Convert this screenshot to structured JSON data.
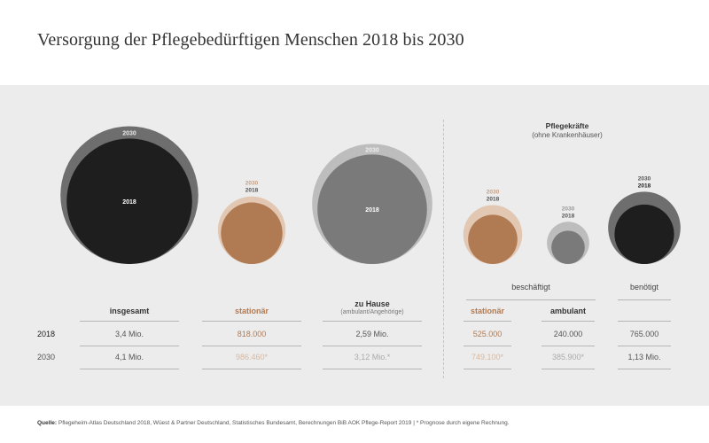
{
  "title": "Versorgung der Pflegebedürftigen Menschen 2018 bis 2030",
  "pflegekraefte": {
    "title": "Pflegekräfte",
    "subtitle": "(ohne Krankenhäuser)"
  },
  "groups": {
    "beschaeftigt": "beschäftigt",
    "benoetigt": "benötigt"
  },
  "circle_labels": {
    "y2018": "2018",
    "y2030": "2030"
  },
  "colors": {
    "insgesamt_2018": "#1e1e1e",
    "insgesamt_2030": "#6e6e6e",
    "stationaer_2018": "#b07a53",
    "stationaer_2030": "#e2c7b3",
    "zuhause_2018": "#7a7a7a",
    "zuhause_2030": "#bdbdbd",
    "ambulant_2018": "#7a7a7a",
    "ambulant_2030": "#bdbdbd",
    "benoetigt_2018": "#1e1e1e",
    "benoetigt_2030": "#6e6e6e",
    "accent": "#b07a53"
  },
  "chart_data": {
    "type": "table",
    "columns": [
      {
        "key": "insgesamt",
        "header": "insgesamt",
        "subheader": "",
        "accent": false
      },
      {
        "key": "stationaer",
        "header": "stationär",
        "subheader": "",
        "accent": true
      },
      {
        "key": "zuhause",
        "header": "zu Hause",
        "subheader": "(ambulant/Angehörige)",
        "accent": false
      },
      {
        "key": "pk_stationaer",
        "header": "stationär",
        "subheader": "",
        "accent": true
      },
      {
        "key": "pk_ambulant",
        "header": "ambulant",
        "subheader": "",
        "accent": false
      },
      {
        "key": "pk_benoetigt",
        "header": "",
        "subheader": "",
        "accent": false
      }
    ],
    "rows": [
      {
        "year": "2018",
        "cells": [
          "3,4 Mio.",
          "818.000",
          "2,59 Mio.",
          "525.000",
          "240.000",
          "765.000"
        ]
      },
      {
        "year": "2030",
        "cells": [
          "4,1 Mio.",
          "986.460*",
          "3,12 Mio.*",
          "749.100*",
          "385.900*",
          "1,13 Mio."
        ]
      }
    ],
    "values": {
      "insgesamt": {
        "2018": 3400000,
        "2030": 4100000
      },
      "stationaer": {
        "2018": 818000,
        "2030": 986460
      },
      "zuhause": {
        "2018": 2590000,
        "2030": 3120000
      },
      "pk_stationaer": {
        "2018": 525000,
        "2030": 749100
      },
      "pk_ambulant": {
        "2018": 240000,
        "2030": 385900
      },
      "pk_benoetigt": {
        "2018": 765000,
        "2030": 1130000
      }
    }
  },
  "source": {
    "label": "Quelle:",
    "text": "Pflegeheim-Atlas Deutschland 2018, Wüest & Partner Deutschland, Statistisches Bundesamt, Berechnungen BiB AOK Pflege-Report 2019  |  * Prognose durch eigene Rechnung."
  }
}
